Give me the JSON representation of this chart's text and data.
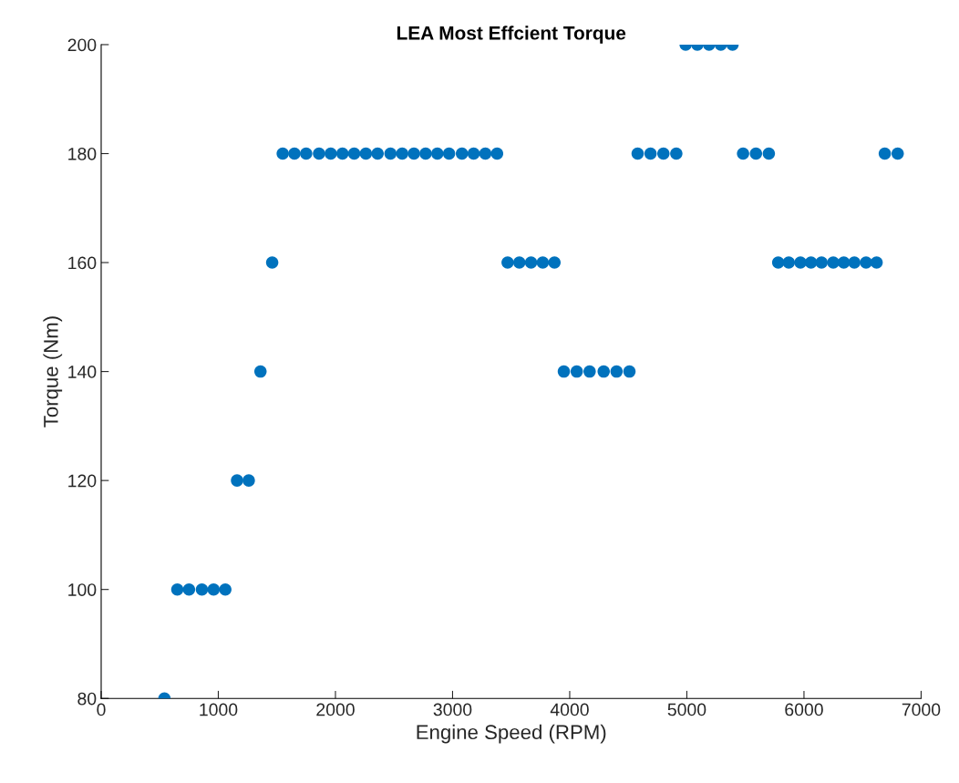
{
  "chart_data": {
    "type": "scatter",
    "title": "LEA Most Effcient Torque",
    "xlabel": "Engine Speed (RPM)",
    "ylabel": "Torque (Nm)",
    "x": [
      540,
      650,
      750,
      860,
      960,
      1060,
      1160,
      1260,
      1360,
      1460,
      1550,
      1650,
      1750,
      1860,
      1960,
      2060,
      2160,
      2260,
      2360,
      2470,
      2570,
      2670,
      2770,
      2870,
      2970,
      3080,
      3180,
      3280,
      3380,
      3470,
      3570,
      3670,
      3770,
      3870,
      3950,
      4060,
      4170,
      4290,
      4400,
      4510,
      4580,
      4690,
      4800,
      4910,
      4990,
      5090,
      5190,
      5290,
      5390,
      5480,
      5590,
      5700,
      5780,
      5870,
      5970,
      6060,
      6150,
      6250,
      6340,
      6430,
      6530,
      6620,
      6690,
      6800
    ],
    "series": [
      {
        "color": "#0072bd",
        "values": [
          80,
          100,
          100,
          100,
          100,
          100,
          120,
          120,
          140,
          160,
          180,
          180,
          180,
          180,
          180,
          180,
          180,
          180,
          180,
          180,
          180,
          180,
          180,
          180,
          180,
          180,
          180,
          180,
          180,
          160,
          160,
          160,
          160,
          160,
          140,
          140,
          140,
          140,
          140,
          140,
          180,
          180,
          180,
          180,
          200,
          200,
          200,
          200,
          200,
          180,
          180,
          180,
          160,
          160,
          160,
          160,
          160,
          160,
          160,
          160,
          160,
          160,
          180,
          180
        ]
      }
    ],
    "xlim": [
      0,
      7000
    ],
    "xticks": [
      0,
      1000,
      2000,
      3000,
      4000,
      5000,
      6000,
      7000
    ],
    "ylim": [
      80,
      200
    ],
    "yticks": [
      80,
      100,
      120,
      140,
      160,
      180,
      200
    ],
    "grid": false,
    "legend": false,
    "marker": "circle"
  }
}
